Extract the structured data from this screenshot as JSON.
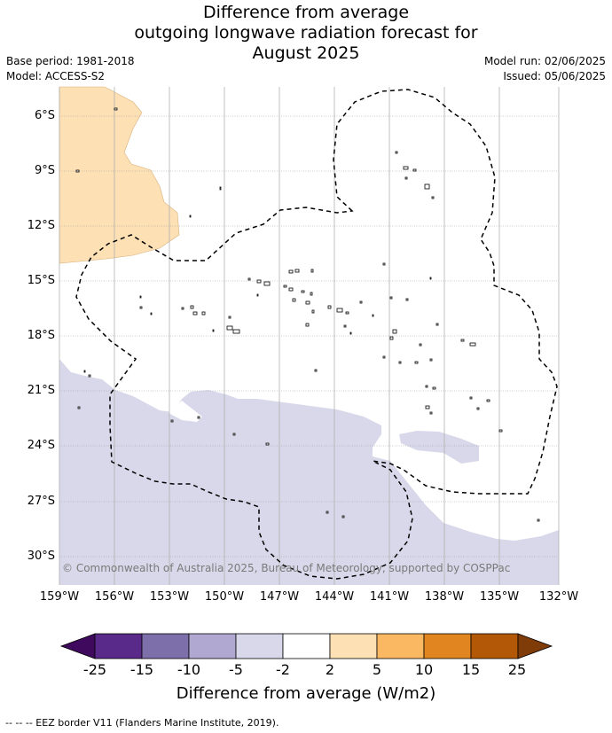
{
  "title": {
    "line1": "Difference from average",
    "line2": "outgoing longwave radiation forecast for",
    "line3": "August 2025"
  },
  "meta": {
    "base_period": "Base period: 1981-2018",
    "model": "Model: ACCESS-S2",
    "model_run": "Model run: 02/06/2025",
    "issued": "Issued: 05/06/2025"
  },
  "axes": {
    "lat_labels": [
      "6°S",
      "9°S",
      "12°S",
      "15°S",
      "18°S",
      "21°S",
      "24°S",
      "27°S",
      "30°S"
    ],
    "lon_labels": [
      "159°W",
      "156°W",
      "153°W",
      "150°W",
      "147°W",
      "144°W",
      "141°W",
      "138°W",
      "135°W",
      "132°W"
    ]
  },
  "copyright": "© Commonwealth of Australia 2025, Bureau of Meteorology, supported by COSPPac",
  "colorbar": {
    "title": "Difference from average (W/m2)",
    "ticks": [
      "-25",
      "-15",
      "-10",
      "-5",
      "-2",
      "2",
      "5",
      "10",
      "15",
      "25"
    ],
    "colors": [
      "#3f0a5e",
      "#5a2a8a",
      "#7d6faa",
      "#b0a8d0",
      "#d8d8ea",
      "#ffffff",
      "#fde0b4",
      "#fbb862",
      "#e0851f",
      "#b35806",
      "#7f3b08"
    ]
  },
  "footer": "--  --  -- EEZ border V11 (Flanders Marine Institute, 2019)."
}
